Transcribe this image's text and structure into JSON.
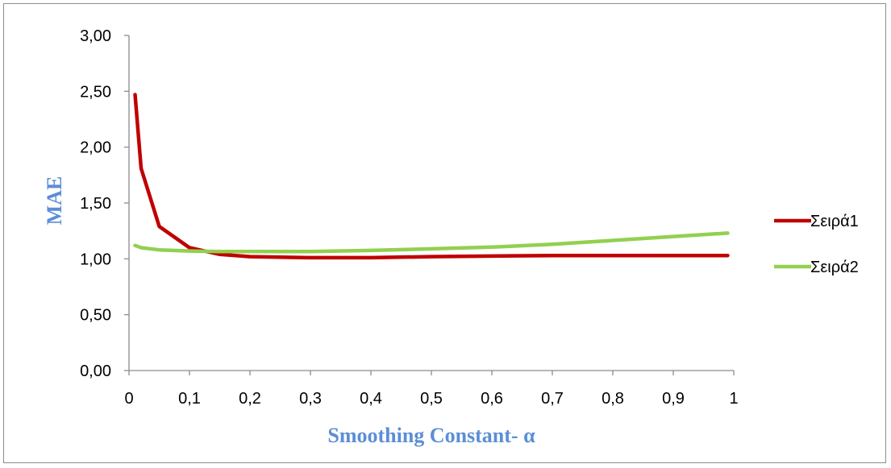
{
  "chart_data": {
    "type": "line",
    "xlabel": "Smoothing Constant- α",
    "ylabel": "MAE",
    "xlim": [
      0,
      1
    ],
    "ylim": [
      0,
      3
    ],
    "x_ticks": [
      "0",
      "0,1",
      "0,2",
      "0,3",
      "0,4",
      "0,5",
      "0,6",
      "0,7",
      "0,8",
      "0,9",
      "1"
    ],
    "y_ticks": [
      "0,00",
      "0,50",
      "1,00",
      "1,50",
      "2,00",
      "2,50",
      "3,00"
    ],
    "grid": false,
    "legend_position": "right",
    "series": [
      {
        "name": "Σειρά1",
        "color": "#c00000",
        "x": [
          0.01,
          0.02,
          0.05,
          0.1,
          0.15,
          0.2,
          0.3,
          0.4,
          0.5,
          0.6,
          0.7,
          0.8,
          0.9,
          0.99
        ],
        "y": [
          2.47,
          1.81,
          1.29,
          1.1,
          1.04,
          1.02,
          1.01,
          1.01,
          1.02,
          1.025,
          1.03,
          1.03,
          1.03,
          1.03
        ]
      },
      {
        "name": "Σειρά2",
        "color": "#92d050",
        "x": [
          0.01,
          0.02,
          0.05,
          0.1,
          0.15,
          0.2,
          0.3,
          0.4,
          0.5,
          0.6,
          0.7,
          0.8,
          0.9,
          0.99
        ],
        "y": [
          1.12,
          1.1,
          1.08,
          1.07,
          1.065,
          1.065,
          1.065,
          1.075,
          1.09,
          1.105,
          1.13,
          1.165,
          1.2,
          1.23
        ]
      }
    ]
  }
}
